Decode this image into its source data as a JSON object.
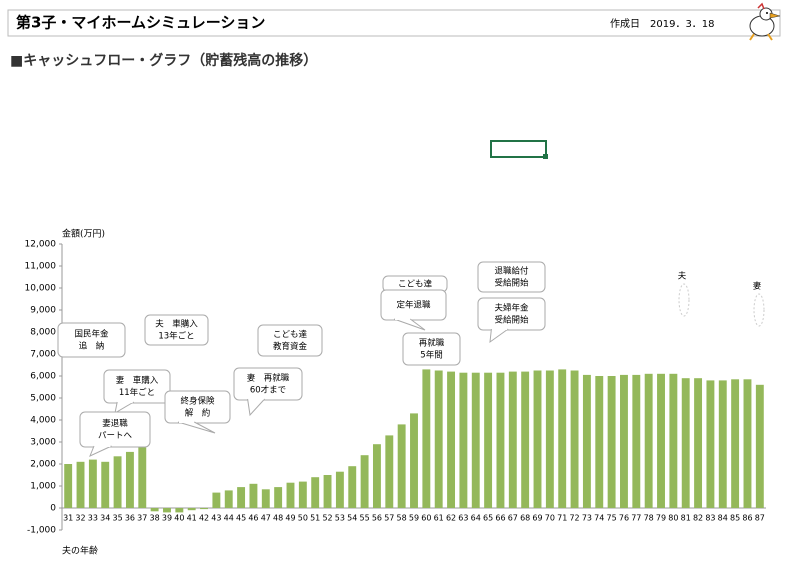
{
  "header": {
    "title": "第3子・マイホームシミュレーション",
    "date": "作成日　2019．3．18"
  },
  "subtitle": "■キャッシュフロー・グラフ（貯蓄残高の推移）",
  "chart_data": {
    "type": "bar",
    "y_label": "金額(万円)",
    "x_label": "夫の年齢",
    "color": "#94b85a",
    "grid": false,
    "categories": [
      "31",
      "32",
      "33",
      "34",
      "35",
      "36",
      "37",
      "38",
      "39",
      "40",
      "41",
      "42",
      "43",
      "44",
      "45",
      "46",
      "47",
      "48",
      "49",
      "50",
      "51",
      "52",
      "53",
      "54",
      "55",
      "56",
      "57",
      "58",
      "59",
      "60",
      "61",
      "62",
      "63",
      "64",
      "65",
      "66",
      "67",
      "68",
      "69",
      "70",
      "71",
      "72",
      "73",
      "74",
      "75",
      "76",
      "77",
      "78",
      "79",
      "80",
      "81",
      "82",
      "83",
      "84",
      "85",
      "86",
      "87"
    ],
    "values": [
      2000,
      2100,
      2200,
      2100,
      2350,
      2550,
      2750,
      -150,
      -200,
      -200,
      -100,
      -50,
      700,
      800,
      950,
      1100,
      850,
      950,
      1150,
      1200,
      1400,
      1500,
      1650,
      1900,
      2400,
      2900,
      3300,
      3800,
      4300,
      6300,
      6250,
      6200,
      6150,
      6150,
      6150,
      6150,
      6200,
      6200,
      6250,
      6250,
      6300,
      6250,
      6050,
      6000,
      6000,
      6050,
      6050,
      6100,
      6100,
      6100,
      5900,
      5900,
      5800,
      5800,
      5850,
      5850,
      5600
    ],
    "ylim": [
      -1000,
      12000
    ],
    "yticks": [
      {
        "value": -1000,
        "label": "-1,000"
      },
      0,
      {
        "value": 1000,
        "label": "1,000"
      },
      {
        "value": 2000,
        "label": "2,000"
      },
      {
        "value": 3000,
        "label": "3,000"
      },
      {
        "value": 4000,
        "label": "4,000"
      },
      {
        "value": 5000,
        "label": "5,000"
      },
      {
        "value": 6000,
        "label": "6,000"
      },
      {
        "value": 7000,
        "label": "7,000"
      },
      {
        "value": 8000,
        "label": "8,000"
      },
      {
        "value": 9000,
        "label": "9,000"
      },
      {
        "value": 10000,
        "label": "10,000"
      },
      {
        "value": 11000,
        "label": "11,000"
      },
      {
        "value": 12000,
        "label": "12,000"
      }
    ],
    "annotations": [
      {
        "lines": [
          "国民年金",
          "追　納"
        ]
      },
      {
        "lines": [
          "夫　車購入",
          "13年ごと"
        ]
      },
      {
        "lines": [
          "こども達",
          "教育資金"
        ]
      },
      {
        "lines": [
          "こども達"
        ]
      },
      {
        "lines": [
          "定年退職"
        ]
      },
      {
        "lines": [
          "退職給付",
          "受給開始"
        ]
      },
      {
        "lines": [
          "夫婦年金",
          "受給開始"
        ]
      },
      {
        "lines": [
          "再就職",
          "5年間"
        ]
      },
      {
        "lines": [
          "妻　車購入",
          "11年ごと"
        ]
      },
      {
        "lines": [
          "終身保険",
          "解　約"
        ]
      },
      {
        "lines": [
          "妻　再就職",
          "60才まで"
        ]
      },
      {
        "lines": [
          "妻退職",
          "パートへ"
        ]
      },
      {
        "lines": [
          "夫"
        ]
      },
      {
        "lines": [
          "妻"
        ]
      }
    ]
  }
}
